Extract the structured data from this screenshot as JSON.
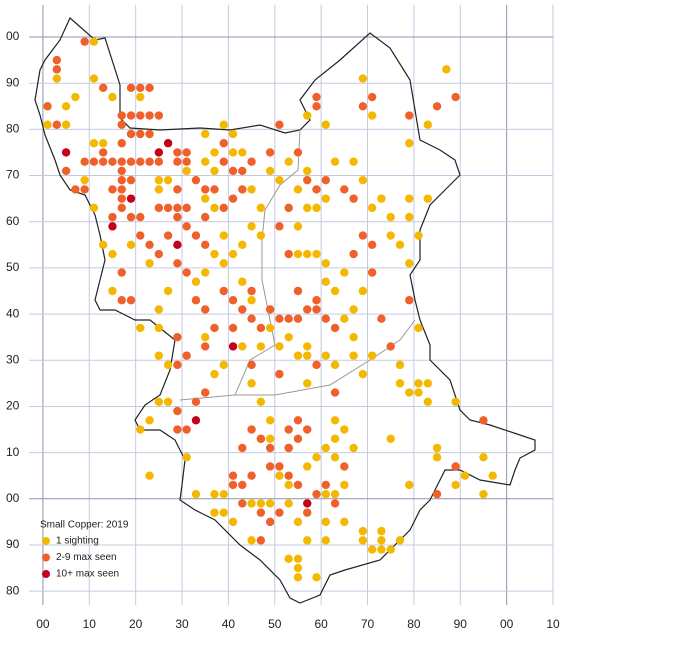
{
  "chart_data": {
    "type": "scatter",
    "title": "Small Copper:  2019",
    "xlim": [
      -3,
      110
    ],
    "ylim": [
      -23,
      107
    ],
    "xticks": [
      {
        "value": 0,
        "label": "00"
      },
      10,
      20,
      30,
      40,
      50,
      60,
      70,
      80,
      90,
      {
        "value": 100,
        "label": "00"
      },
      {
        "value": 110,
        "label": "10"
      }
    ],
    "yticks": [
      {
        "value": 100,
        "label": "00"
      },
      90,
      80,
      70,
      60,
      50,
      40,
      30,
      20,
      10,
      {
        "value": 0,
        "label": "00"
      },
      {
        "value": -10,
        "label": "90"
      },
      {
        "value": -20,
        "label": "80"
      }
    ],
    "grid": true,
    "legend": "bottom-left",
    "series": [
      {
        "name": "1 sighting",
        "color": "#f5b800",
        "x": [
          1,
          3,
          1,
          5,
          7,
          5,
          11,
          11,
          15,
          21,
          11,
          13,
          9,
          11,
          13,
          19,
          15,
          15,
          21,
          25,
          27,
          25,
          23,
          25,
          25,
          27,
          31,
          35,
          37,
          35,
          39,
          41,
          37,
          35,
          37,
          39,
          37,
          35,
          33,
          39,
          41,
          43,
          45,
          47,
          43,
          45,
          49,
          47,
          43,
          39,
          37,
          35,
          27,
          25,
          23,
          21,
          23,
          31,
          27,
          25,
          35,
          45,
          47,
          49,
          47,
          49,
          53,
          51,
          53,
          57,
          59,
          61,
          63,
          63,
          65,
          67,
          63,
          57,
          57,
          51,
          55,
          53,
          57,
          61,
          63,
          67,
          69,
          71,
          67,
          65,
          67,
          69,
          63,
          61,
          57,
          55,
          59,
          61,
          65,
          55,
          59,
          61,
          57,
          63,
          67,
          69,
          71,
          73,
          75,
          75,
          77,
          79,
          81,
          79,
          79,
          83,
          79,
          83,
          87,
          69,
          71,
          61,
          57,
          47,
          45,
          41,
          43,
          49,
          51,
          53,
          55,
          57,
          81,
          77,
          77,
          79,
          81,
          83,
          81,
          83,
          85,
          85,
          89,
          91,
          89,
          95,
          97,
          75,
          79,
          77,
          73,
          73,
          69,
          69,
          65,
          57,
          55,
          55,
          53,
          55,
          59,
          61,
          61,
          61,
          63,
          65,
          41,
          39,
          37,
          39,
          37,
          33,
          45,
          47,
          45,
          49,
          53,
          55,
          73,
          71,
          75,
          95
        ],
        "y": [
          85,
          91,
          81,
          81,
          87,
          85,
          91,
          99,
          87,
          87,
          77,
          77,
          69,
          63,
          55,
          55,
          53,
          45,
          37,
          37,
          45,
          41,
          51,
          67,
          69,
          69,
          71,
          73,
          75,
          79,
          81,
          79,
          71,
          65,
          63,
          57,
          53,
          49,
          47,
          51,
          53,
          55,
          59,
          57,
          47,
          43,
          37,
          33,
          33,
          29,
          27,
          23,
          21,
          21,
          17,
          15,
          5,
          9,
          29,
          31,
          35,
          25,
          21,
          17,
          13,
          13,
          11,
          5,
          3,
          7,
          9,
          11,
          9,
          13,
          15,
          11,
          17,
          25,
          31,
          33,
          31,
          35,
          33,
          31,
          29,
          31,
          27,
          31,
          35,
          39,
          41,
          45,
          45,
          47,
          53,
          53,
          53,
          51,
          49,
          59,
          63,
          65,
          71,
          73,
          73,
          69,
          63,
          65,
          61,
          57,
          55,
          51,
          57,
          61,
          65,
          65,
          77,
          81,
          93,
          91,
          83,
          81,
          83,
          63,
          67,
          75,
          75,
          71,
          69,
          73,
          67,
          63,
          37,
          29,
          25,
          23,
          25,
          21,
          23,
          25,
          11,
          9,
          21,
          5,
          3,
          1,
          5,
          13,
          3,
          -9,
          -9,
          -7,
          -7,
          -9,
          -5,
          -9,
          -13,
          -15,
          -13,
          -17,
          -17,
          -9,
          -5,
          1,
          1,
          3,
          -5,
          -3,
          1,
          1,
          -3,
          1,
          -9,
          -1,
          -1,
          -1,
          -1,
          -5,
          -11,
          -11,
          -11,
          9
        ]
      },
      {
        "name": "2-9 max seen",
        "color": "#f0602a",
        "x": [
          1,
          3,
          3,
          3,
          5,
          7,
          9,
          9,
          11,
          13,
          15,
          17,
          19,
          21,
          23,
          25,
          13,
          17,
          17,
          19,
          21,
          23,
          25,
          17,
          19,
          21,
          23,
          17,
          17,
          19,
          15,
          17,
          17,
          17,
          15,
          19,
          21,
          25,
          27,
          29,
          31,
          29,
          31,
          27,
          25,
          21,
          23,
          17,
          17,
          19,
          29,
          31,
          29,
          31,
          33,
          29,
          35,
          37,
          39,
          41,
          39,
          43,
          45,
          43,
          41,
          39,
          35,
          33,
          35,
          29,
          31,
          33,
          35,
          39,
          41,
          43,
          45,
          45,
          41,
          37,
          35,
          29,
          31,
          29,
          33,
          35,
          29,
          31,
          29,
          45,
          47,
          49,
          51,
          53,
          55,
          57,
          59,
          61,
          63,
          59,
          55,
          53,
          51,
          53,
          55,
          57,
          59,
          61,
          65,
          67,
          69,
          71,
          67,
          71,
          73,
          75,
          79,
          85,
          89,
          69,
          71,
          79,
          59,
          59,
          51,
          49,
          45,
          49,
          51,
          53,
          55,
          53,
          55,
          57,
          55,
          53,
          49,
          47,
          45,
          43,
          41,
          41,
          43,
          43,
          47,
          51,
          49,
          47,
          57,
          59,
          61,
          63,
          65,
          59,
          51,
          63,
          85,
          89,
          95,
          23,
          21,
          9,
          13,
          19
        ],
        "y": [
          85,
          95,
          93,
          81,
          71,
          67,
          67,
          73,
          73,
          73,
          73,
          73,
          73,
          73,
          73,
          73,
          75,
          77,
          81,
          83,
          83,
          83,
          83,
          83,
          79,
          79,
          79,
          71,
          69,
          69,
          67,
          67,
          65,
          63,
          61,
          61,
          61,
          63,
          63,
          63,
          63,
          61,
          59,
          57,
          53,
          57,
          55,
          49,
          43,
          43,
          73,
          73,
          75,
          75,
          69,
          67,
          67,
          67,
          73,
          71,
          77,
          71,
          73,
          67,
          65,
          63,
          61,
          57,
          55,
          51,
          49,
          43,
          41,
          45,
          43,
          41,
          45,
          39,
          37,
          37,
          33,
          35,
          31,
          29,
          21,
          23,
          19,
          15,
          15,
          29,
          37,
          41,
          39,
          39,
          39,
          41,
          41,
          39,
          37,
          43,
          45,
          53,
          59,
          63,
          75,
          69,
          67,
          69,
          67,
          65,
          57,
          55,
          53,
          49,
          39,
          33,
          43,
          85,
          87,
          85,
          87,
          83,
          87,
          85,
          81,
          75,
          5,
          7,
          7,
          5,
          3,
          11,
          13,
          15,
          17,
          15,
          11,
          13,
          15,
          11,
          5,
          3,
          3,
          -1,
          -3,
          -3,
          -5,
          -9,
          -3,
          1,
          3,
          -1,
          7,
          29,
          27,
          23,
          1,
          7,
          17,
          89,
          89,
          99,
          89,
          89
        ]
      },
      {
        "name": "10+ max seen",
        "color": "#c4001e",
        "x": [
          5,
          15,
          19,
          25,
          27,
          29,
          33,
          41,
          57
        ],
        "y": [
          75,
          59,
          65,
          75,
          77,
          55,
          17,
          33,
          -1
        ]
      }
    ]
  }
}
